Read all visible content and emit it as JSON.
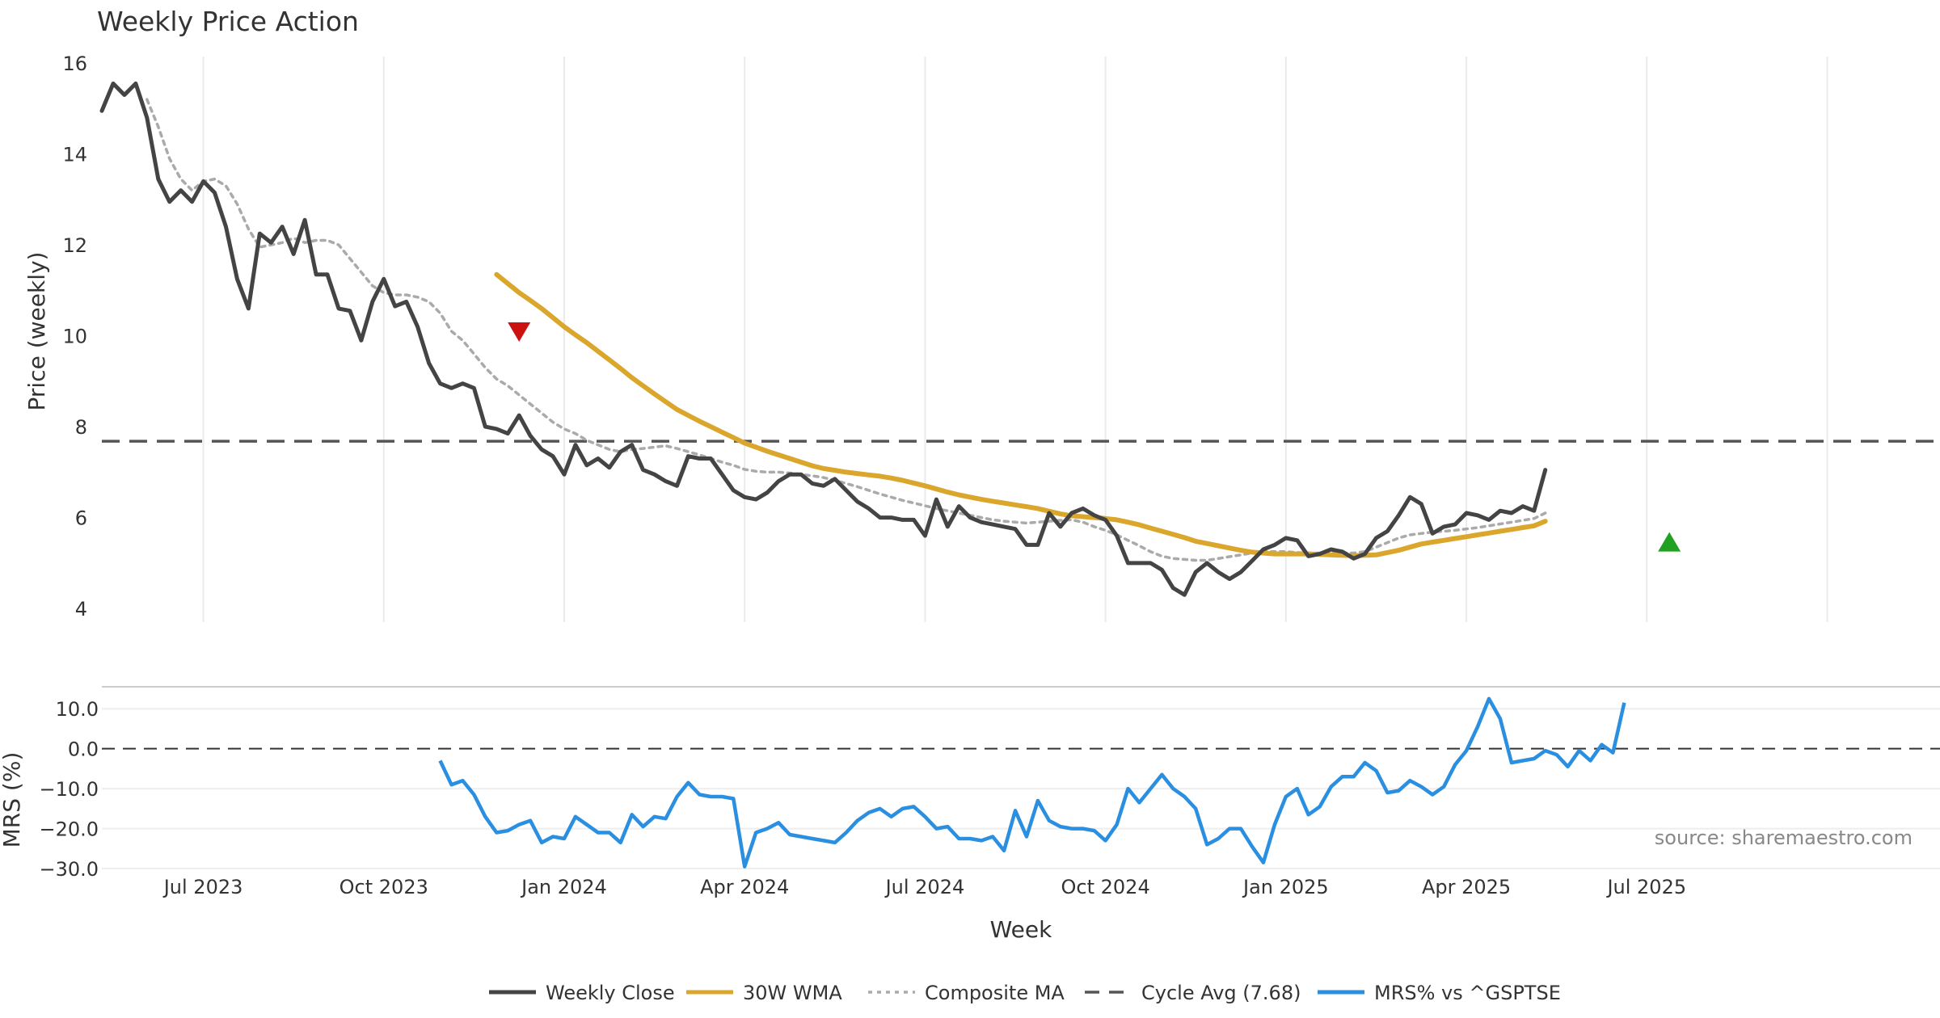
{
  "title": "Weekly Price Action",
  "source": "source: sharemaestro.com",
  "colors": {
    "close": "#444444",
    "wma": "#DAA62C",
    "composite": "#AAAAAA",
    "cycle": "#555555",
    "mrs": "#2A8FE0",
    "sell": "#CC1111",
    "buy": "#22A022",
    "grid": "#EBEBEB"
  },
  "chart_data": [
    {
      "type": "line",
      "title": "Weekly Price Action",
      "ylabel": "Price (weekly)",
      "xlabel": "Week",
      "ylim": [
        3.7,
        16.5
      ],
      "yticks": [
        4,
        6,
        8,
        10,
        12,
        14,
        16
      ],
      "xlim": [
        0,
        163
      ],
      "cycle_avg": 7.68,
      "series": [
        {
          "name": "Weekly Close",
          "start": 0,
          "values": [
            14.95,
            15.55,
            15.3,
            15.55,
            14.8,
            13.45,
            12.95,
            13.2,
            12.95,
            13.4,
            13.15,
            12.4,
            11.25,
            10.6,
            12.25,
            12.05,
            12.4,
            11.8,
            12.55,
            11.35,
            11.35,
            10.6,
            10.55,
            9.9,
            10.75,
            11.25,
            10.65,
            10.75,
            10.2,
            9.4,
            8.95,
            8.85,
            8.95,
            8.85,
            8.0,
            7.95,
            7.85,
            8.25,
            7.8,
            7.5,
            7.35,
            6.95,
            7.6,
            7.15,
            7.3,
            7.1,
            7.45,
            7.6,
            7.05,
            6.95,
            6.8,
            6.7,
            7.35,
            7.3,
            7.3,
            6.95,
            6.6,
            6.45,
            6.4,
            6.55,
            6.8,
            6.95,
            6.95,
            6.75,
            6.7,
            6.85,
            6.6,
            6.35,
            6.2,
            6.0,
            6.0,
            5.95,
            5.95,
            5.6,
            6.4,
            5.8,
            6.25,
            6.0,
            5.9,
            5.85,
            5.8,
            5.75,
            5.4,
            5.4,
            6.1,
            5.8,
            6.1,
            6.2,
            6.05,
            5.95,
            5.6,
            5.0,
            5.0,
            5.0,
            4.85,
            4.45,
            4.3,
            4.8,
            5.0,
            4.8,
            4.65,
            4.8,
            5.05,
            5.3,
            5.4,
            5.55,
            5.5,
            5.15,
            5.2,
            5.3,
            5.25,
            5.1,
            5.2,
            5.55,
            5.7,
            6.05,
            6.45,
            6.3,
            5.65,
            5.8,
            5.85,
            6.1,
            6.05,
            5.95,
            6.15,
            6.1,
            6.25,
            6.15,
            7.05
          ]
        },
        {
          "name": "30W WMA",
          "start": 35,
          "values": [
            11.35,
            11.15,
            10.95,
            10.78,
            10.6,
            10.4,
            10.2,
            10.02,
            9.85,
            9.66,
            9.47,
            9.28,
            9.08,
            8.9,
            8.72,
            8.55,
            8.38,
            8.25,
            8.12,
            8.0,
            7.88,
            7.76,
            7.64,
            7.55,
            7.46,
            7.38,
            7.3,
            7.22,
            7.14,
            7.08,
            7.04,
            7.0,
            6.97,
            6.94,
            6.91,
            6.87,
            6.82,
            6.76,
            6.7,
            6.63,
            6.56,
            6.5,
            6.45,
            6.4,
            6.36,
            6.32,
            6.28,
            6.24,
            6.2,
            6.14,
            6.08,
            6.04,
            6.02,
            6.0,
            5.98,
            5.95,
            5.9,
            5.84,
            5.77,
            5.7,
            5.63,
            5.56,
            5.48,
            5.43,
            5.38,
            5.33,
            5.28,
            5.24,
            5.22,
            5.2,
            5.2,
            5.2,
            5.2,
            5.19,
            5.18,
            5.17,
            5.16,
            5.17,
            5.18,
            5.23,
            5.28,
            5.35,
            5.42,
            5.46,
            5.5,
            5.54,
            5.58,
            5.62,
            5.66,
            5.7,
            5.74,
            5.78,
            5.82,
            5.92
          ]
        },
        {
          "name": "Composite MA",
          "start": 4,
          "values": [
            15.2,
            14.6,
            13.9,
            13.45,
            13.2,
            13.4,
            13.45,
            13.3,
            12.9,
            12.35,
            11.95,
            12.0,
            12.05,
            12.15,
            12.05,
            12.1,
            12.1,
            12.0,
            11.7,
            11.4,
            11.1,
            10.95,
            10.9,
            10.9,
            10.85,
            10.75,
            10.5,
            10.1,
            9.9,
            9.6,
            9.3,
            9.05,
            8.9,
            8.7,
            8.5,
            8.3,
            8.1,
            7.95,
            7.85,
            7.7,
            7.6,
            7.5,
            7.45,
            7.5,
            7.52,
            7.55,
            7.58,
            7.52,
            7.45,
            7.38,
            7.3,
            7.22,
            7.15,
            7.06,
            7.02,
            7.0,
            7.0,
            6.98,
            6.95,
            6.92,
            6.88,
            6.82,
            6.75,
            6.68,
            6.6,
            6.52,
            6.45,
            6.38,
            6.32,
            6.26,
            6.2,
            6.15,
            6.1,
            6.05,
            6.0,
            5.95,
            5.92,
            5.9,
            5.88,
            5.9,
            5.92,
            5.94,
            5.95,
            5.9,
            5.8,
            5.72,
            5.62,
            5.5,
            5.38,
            5.25,
            5.15,
            5.1,
            5.08,
            5.06,
            5.06,
            5.1,
            5.14,
            5.18,
            5.22,
            5.25,
            5.25,
            5.25,
            5.23,
            5.22,
            5.22,
            5.22,
            5.22,
            5.22,
            5.25,
            5.35,
            5.45,
            5.55,
            5.62,
            5.65,
            5.68,
            5.7,
            5.72,
            5.75,
            5.78,
            5.82,
            5.86,
            5.9,
            5.94,
            5.98,
            6.1
          ]
        }
      ],
      "markers": [
        {
          "name": "sell-signal",
          "type": "triangle-down",
          "x": 37,
          "y": 10.1
        },
        {
          "name": "buy-signal",
          "type": "triangle-up",
          "x": 139,
          "y": 5.45
        }
      ]
    },
    {
      "type": "line",
      "ylabel": "MRS (%)",
      "ylim": [
        -31,
        15.5
      ],
      "yticks": [
        10,
        0,
        -10,
        -20,
        -30
      ],
      "ytick_labels": [
        "10.0",
        "0.0",
        "−10.0",
        "−20.0",
        "−30.0"
      ],
      "xlim": [
        0,
        163
      ],
      "series": [
        {
          "name": "MRS% vs ^GSPTSE",
          "start": 30,
          "values": [
            -3,
            -9,
            -8,
            -11.5,
            -17,
            -21,
            -20.5,
            -19,
            -18,
            -23.5,
            -22,
            -22.5,
            -17,
            -19,
            -21,
            -21,
            -23.5,
            -16.5,
            -19.5,
            -17,
            -17.5,
            -12,
            -8.5,
            -11.5,
            -12,
            -12,
            -12.5,
            -29.5,
            -21,
            -20,
            -18.5,
            -21.5,
            -22,
            -22.5,
            -23,
            -23.5,
            -21,
            -18,
            -16,
            -15,
            -17,
            -15,
            -14.5,
            -17,
            -20,
            -19.5,
            -22.5,
            -22.5,
            -23,
            -22,
            -25.5,
            -15.5,
            -22,
            -13,
            -18,
            -19.5,
            -20,
            -20,
            -20.5,
            -23,
            -19,
            -10,
            -13.5,
            -10,
            -6.5,
            -10,
            -12,
            -15,
            -24,
            -22.5,
            -20,
            -20,
            -24.5,
            -28.5,
            -19,
            -12,
            -10,
            -16.5,
            -14.5,
            -9.5,
            -7,
            -7,
            -3.5,
            -5.5,
            -11,
            -10.5,
            -8,
            -9.5,
            -11.5,
            -9.5,
            -4,
            -0.5,
            5.5,
            12.5,
            7.5,
            -3.5,
            -3,
            -2.5,
            -0.5,
            -1.5,
            -4.5,
            -0.5,
            -3,
            1,
            -1,
            11.5
          ]
        }
      ],
      "xaxis": {
        "label": "Week",
        "ticks": [
          {
            "label": "Jul 2023",
            "x": 9
          },
          {
            "label": "Oct 2023",
            "x": 25
          },
          {
            "label": "Jan 2024",
            "x": 41
          },
          {
            "label": "Apr 2024",
            "x": 57
          },
          {
            "label": "Jul 2024",
            "x": 73
          },
          {
            "label": "Oct 2024",
            "x": 89
          },
          {
            "label": "Jan 2025",
            "x": 105
          },
          {
            "label": "Apr 2025",
            "x": 121
          },
          {
            "label": "Jul 2025",
            "x": 137
          }
        ]
      }
    }
  ],
  "legend": [
    {
      "label": "Weekly Close",
      "style": "solid",
      "color_key": "close"
    },
    {
      "label": "30W WMA",
      "style": "solid",
      "color_key": "wma"
    },
    {
      "label": "Composite MA",
      "style": "dotted",
      "color_key": "composite"
    },
    {
      "label": "Cycle Avg (7.68)",
      "style": "dashed",
      "color_key": "cycle"
    },
    {
      "label": "MRS% vs ^GSPTSE",
      "style": "solid",
      "color_key": "mrs"
    }
  ]
}
